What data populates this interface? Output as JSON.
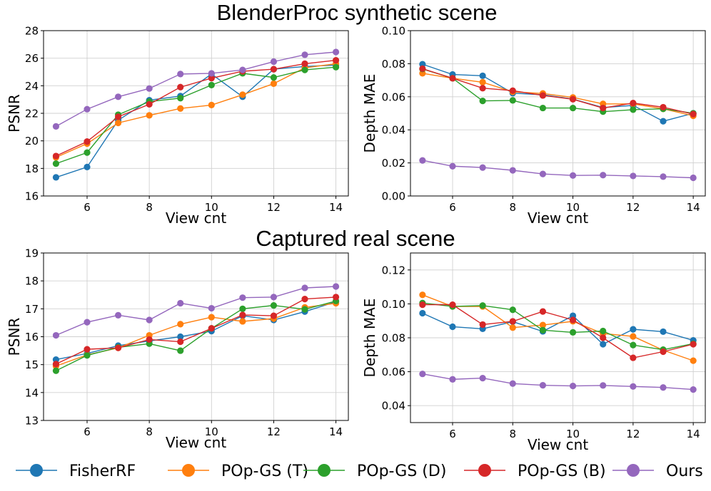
{
  "section_titles": {
    "top": "BlenderProc synthetic scene",
    "bottom": "Captured real scene"
  },
  "legend": [
    {
      "name": "FisherRF",
      "color": "#1f77b4"
    },
    {
      "name": "POp-GS (T)",
      "color": "#ff7f0e"
    },
    {
      "name": "POp-GS (D)",
      "color": "#2ca02c"
    },
    {
      "name": "POp-GS (B)",
      "color": "#d62728"
    },
    {
      "name": "Ours",
      "color": "#9467bd"
    }
  ],
  "chart_data": [
    {
      "id": "syn-psnr",
      "type": "line",
      "section": "BlenderProc synthetic scene",
      "xlabel": "View cnt",
      "ylabel": "PSNR",
      "xlim": [
        4.6,
        14.4
      ],
      "ylim": [
        16,
        28
      ],
      "xticks": [
        6,
        8,
        10,
        12,
        14
      ],
      "yticks": [
        16,
        18,
        20,
        22,
        24,
        26,
        28
      ],
      "ytick_labels": [
        "16",
        "18",
        "20",
        "22",
        "24",
        "26",
        "28"
      ],
      "xtick_labels": [
        "6",
        "8",
        "10",
        "12",
        "14"
      ],
      "grid": true,
      "x": [
        5,
        6,
        7,
        8,
        9,
        10,
        11,
        12,
        13,
        14
      ],
      "series": [
        {
          "name": "FisherRF",
          "values": [
            17.35,
            18.1,
            21.5,
            22.95,
            23.25,
            24.85,
            23.2,
            25.2,
            25.4,
            25.5
          ]
        },
        {
          "name": "POp-GS (T)",
          "values": [
            18.8,
            19.8,
            21.3,
            21.85,
            22.35,
            22.6,
            23.35,
            24.15,
            25.3,
            25.6
          ]
        },
        {
          "name": "POp-GS (D)",
          "values": [
            18.35,
            19.15,
            21.9,
            22.85,
            23.1,
            24.05,
            24.9,
            24.6,
            25.15,
            25.35
          ]
        },
        {
          "name": "POp-GS (B)",
          "values": [
            18.9,
            19.95,
            21.75,
            22.65,
            23.9,
            24.55,
            25.05,
            25.2,
            25.6,
            25.85
          ]
        },
        {
          "name": "Ours",
          "values": [
            21.05,
            22.3,
            23.2,
            23.8,
            24.85,
            24.9,
            25.15,
            25.75,
            26.25,
            26.45
          ]
        }
      ]
    },
    {
      "id": "syn-mae",
      "type": "line",
      "section": "BlenderProc synthetic scene",
      "xlabel": "View cnt",
      "ylabel": "Depth MAE",
      "xlim": [
        4.6,
        14.4
      ],
      "ylim": [
        0,
        0.1
      ],
      "xticks": [
        6,
        8,
        10,
        12,
        14
      ],
      "yticks": [
        0,
        0.02,
        0.04,
        0.06,
        0.08,
        0.1
      ],
      "ytick_labels": [
        "0.00",
        "0.02",
        "0.04",
        "0.06",
        "0.08",
        "0.10"
      ],
      "xtick_labels": [
        "6",
        "8",
        "10",
        "12",
        "14"
      ],
      "grid": true,
      "x": [
        5,
        6,
        7,
        8,
        9,
        10,
        11,
        12,
        13,
        14
      ],
      "series": [
        {
          "name": "FisherRF",
          "values": [
            0.0797,
            0.0735,
            0.0727,
            0.0622,
            0.0612,
            0.0586,
            0.0535,
            0.0548,
            0.0452,
            0.05
          ]
        },
        {
          "name": "POp-GS (T)",
          "values": [
            0.0742,
            0.0712,
            0.0688,
            0.063,
            0.062,
            0.0596,
            0.0557,
            0.0557,
            0.0527,
            0.0485
          ]
        },
        {
          "name": "POp-GS (D)",
          "values": [
            0.0768,
            0.0712,
            0.0575,
            0.0578,
            0.0532,
            0.0532,
            0.051,
            0.0522,
            0.0527,
            0.05
          ]
        },
        {
          "name": "POp-GS (B)",
          "values": [
            0.077,
            0.0712,
            0.0652,
            0.0637,
            0.0608,
            0.0585,
            0.0532,
            0.0562,
            0.0537,
            0.0495
          ]
        },
        {
          "name": "Ours",
          "values": [
            0.0215,
            0.018,
            0.0172,
            0.0155,
            0.0133,
            0.0124,
            0.0126,
            0.0121,
            0.0117,
            0.011
          ]
        }
      ]
    },
    {
      "id": "real-psnr",
      "type": "line",
      "section": "Captured real scene",
      "xlabel": "View cnt",
      "ylabel": "PSNR",
      "xlim": [
        4.6,
        14.4
      ],
      "ylim": [
        13,
        19
      ],
      "xticks": [
        6,
        8,
        10,
        12,
        14
      ],
      "yticks": [
        13,
        14,
        15,
        16,
        17,
        18,
        19
      ],
      "ytick_labels": [
        "13",
        "14",
        "15",
        "16",
        "17",
        "18",
        "19"
      ],
      "xtick_labels": [
        "6",
        "8",
        "10",
        "12",
        "14"
      ],
      "grid": true,
      "x": [
        5,
        6,
        7,
        8,
        9,
        10,
        11,
        12,
        13,
        14
      ],
      "series": [
        {
          "name": "FisherRF",
          "values": [
            15.18,
            15.4,
            15.68,
            15.85,
            16.0,
            16.2,
            16.75,
            16.6,
            16.9,
            17.25
          ]
        },
        {
          "name": "POp-GS (T)",
          "values": [
            14.95,
            15.35,
            15.6,
            16.05,
            16.45,
            16.7,
            16.55,
            16.65,
            17.05,
            17.2
          ]
        },
        {
          "name": "POp-GS (D)",
          "values": [
            14.78,
            15.33,
            15.62,
            15.75,
            15.5,
            16.3,
            17.0,
            17.12,
            16.98,
            17.28
          ]
        },
        {
          "name": "POp-GS (B)",
          "values": [
            15.02,
            15.55,
            15.6,
            15.9,
            15.82,
            16.3,
            16.78,
            16.75,
            17.35,
            17.42
          ]
        },
        {
          "name": "Ours",
          "values": [
            16.05,
            16.52,
            16.77,
            16.6,
            17.2,
            17.02,
            17.4,
            17.42,
            17.75,
            17.8
          ]
        }
      ]
    },
    {
      "id": "real-mae",
      "type": "line",
      "section": "Captured real scene",
      "xlabel": "View cnt",
      "ylabel": "Depth MAE",
      "xlim": [
        4.6,
        14.4
      ],
      "ylim": [
        0.03,
        0.13
      ],
      "xticks": [
        6,
        8,
        10,
        12,
        14
      ],
      "yticks": [
        0.04,
        0.06,
        0.08,
        0.1,
        0.12
      ],
      "ytick_labels": [
        "0.04",
        "0.06",
        "0.08",
        "0.10",
        "0.12"
      ],
      "xtick_labels": [
        "6",
        "8",
        "10",
        "12",
        "14"
      ],
      "grid": true,
      "x": [
        5,
        6,
        7,
        8,
        9,
        10,
        11,
        12,
        13,
        14
      ],
      "series": [
        {
          "name": "FisherRF",
          "values": [
            0.0945,
            0.0865,
            0.0853,
            0.0895,
            0.0838,
            0.093,
            0.0762,
            0.085,
            0.0836,
            0.0785
          ]
        },
        {
          "name": "POp-GS (T)",
          "values": [
            0.1053,
            0.0985,
            0.0985,
            0.086,
            0.0875,
            0.0897,
            0.0825,
            0.0808,
            0.0727,
            0.0665
          ]
        },
        {
          "name": "POp-GS (D)",
          "values": [
            0.1005,
            0.0985,
            0.099,
            0.0965,
            0.0845,
            0.0832,
            0.084,
            0.0757,
            0.073,
            0.0765
          ]
        },
        {
          "name": "POp-GS (B)",
          "values": [
            0.0995,
            0.0995,
            0.0878,
            0.0897,
            0.0955,
            0.0905,
            0.08,
            0.0682,
            0.0718,
            0.0762
          ]
        },
        {
          "name": "Ours",
          "values": [
            0.0587,
            0.0555,
            0.0562,
            0.053,
            0.052,
            0.0516,
            0.0519,
            0.0513,
            0.0507,
            0.0495
          ]
        }
      ]
    }
  ]
}
